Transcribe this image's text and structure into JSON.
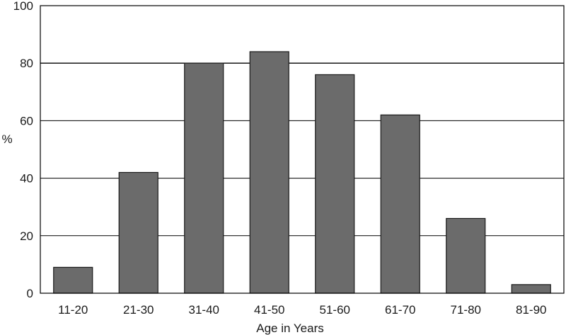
{
  "chart_data": {
    "type": "bar",
    "categories": [
      "11-20",
      "21-30",
      "31-40",
      "41-50",
      "51-60",
      "61-70",
      "71-80",
      "81-90"
    ],
    "values": [
      9,
      42,
      80,
      84,
      76,
      62,
      26,
      3
    ],
    "title": "",
    "xlabel": "Age in Years",
    "ylabel": "%",
    "ylim": [
      0,
      100
    ],
    "yticks": [
      0,
      20,
      40,
      60,
      80,
      100
    ],
    "grid": true,
    "bar_color": "#6b6b6b",
    "bar_stroke": "#1a1a1a"
  }
}
